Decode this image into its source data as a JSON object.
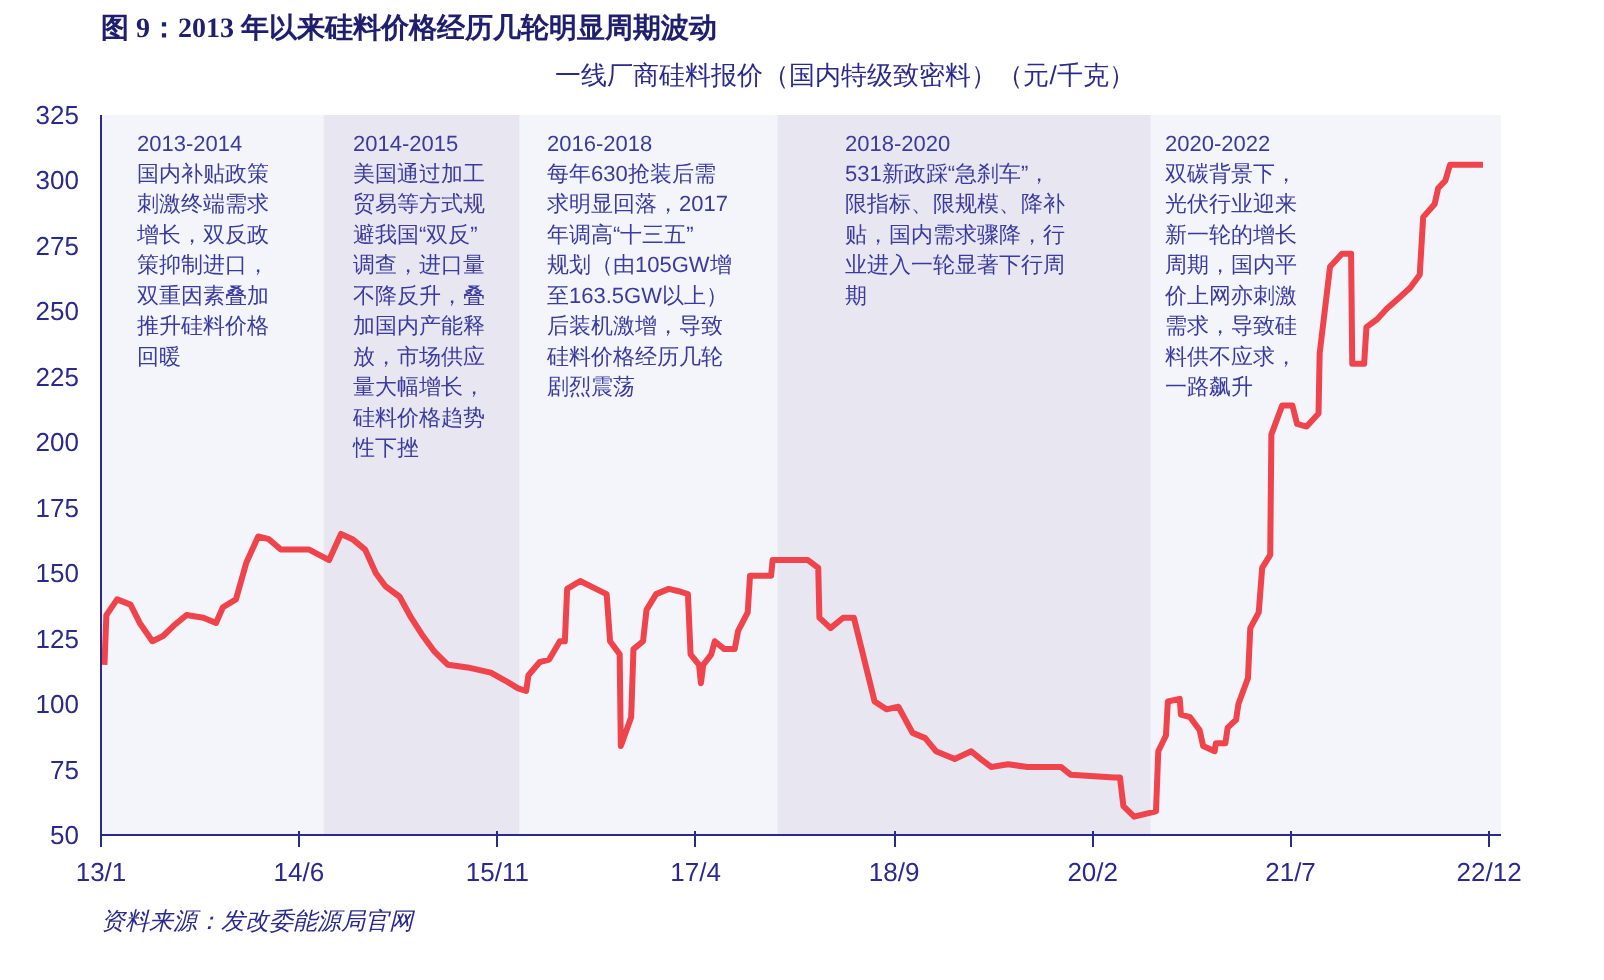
{
  "chart_data": {
    "type": "line",
    "title": "图 9：2013 年以来硅料价格经历几轮明显周期波动",
    "legend": "top",
    "x": [
      "2013-01-10",
      "2013-01-15",
      "2013-02-12",
      "2013-03-19",
      "2013-04-12",
      "2013-05-15",
      "2013-06-12",
      "2013-07-10",
      "2013-08-12",
      "2013-09-25",
      "2013-10-28",
      "2013-11-15",
      "2013-12-19",
      "2014-01-15",
      "2014-02-15",
      "2014-03-15",
      "2014-04-15",
      "2014-06-28",
      "2014-08-19",
      "2014-09-19",
      "2014-10-19",
      "2014-11-21",
      "2014-12-19",
      "2015-01-13",
      "2015-02-19",
      "2015-03-21",
      "2015-04-21",
      "2015-05-21",
      "2015-06-25",
      "2015-08-15",
      "2015-10-15",
      "2015-11-21",
      "2015-12-25",
      "2016-01-15",
      "2016-01-21",
      "2016-02-19",
      "2016-03-15",
      "2016-04-12",
      "2016-04-25",
      "2016-05-01",
      "2016-06-04",
      "2016-07-15",
      "2016-08-12",
      "2016-08-21",
      "2016-09-15",
      "2016-09-18",
      "2016-10-15",
      "2016-10-21",
      "2016-11-15",
      "2016-11-24",
      "2016-12-19",
      "2017-01-21",
      "2017-02-19",
      "2017-03-12",
      "2017-03-19",
      "2017-04-10",
      "2017-04-15",
      "2017-04-21",
      "2017-05-12",
      "2017-05-21",
      "2017-06-15",
      "2017-07-12",
      "2017-07-21",
      "2017-08-15",
      "2017-08-21",
      "2017-10-15",
      "2017-10-19",
      "2017-11-19",
      "2018-01-19",
      "2018-02-15",
      "2018-02-18",
      "2018-03-19",
      "2018-04-21",
      "2018-05-19",
      "2018-07-12",
      "2018-08-12",
      "2018-09-12",
      "2018-10-19",
      "2018-11-21",
      "2018-12-19",
      "2019-02-06",
      "2019-03-21",
      "2019-04-15",
      "2019-05-12",
      "2019-06-25",
      "2019-08-15",
      "2019-11-10",
      "2019-12-06",
      "2020-03-28",
      "2020-04-12",
      "2020-04-21",
      "2020-05-19",
      "2020-07-15",
      "2020-07-21",
      "2020-08-10",
      "2020-08-15",
      "2020-09-15",
      "2020-09-18",
      "2020-10-12",
      "2020-11-06",
      "2020-11-15",
      "2020-12-15",
      "2020-12-18",
      "2021-01-12",
      "2021-01-18",
      "2021-02-09",
      "2021-02-15",
      "2021-03-12",
      "2021-03-18",
      "2021-04-09",
      "2021-04-18",
      "2021-05-09",
      "2021-05-12",
      "2021-06-09",
      "2021-07-06",
      "2021-07-18",
      "2021-08-12",
      "2021-09-12",
      "2021-09-15",
      "2021-10-12",
      "2021-11-12",
      "2021-12-06",
      "2021-12-09",
      "2022-01-09",
      "2022-01-15",
      "2022-02-12",
      "2022-03-09",
      "2022-04-09",
      "2022-05-09",
      "2022-06-03",
      "2022-06-12",
      "2022-07-12",
      "2022-07-21",
      "2022-08-09",
      "2022-08-21",
      "2022-11-15"
    ],
    "series": [
      {
        "name": "一线厂商硅料报价（国内特级致密料）（元/千克）",
        "color": "#f0444c",
        "values": [
          115,
          134,
          140,
          138,
          131,
          124,
          126,
          130,
          134,
          133,
          131,
          137,
          140,
          154,
          164,
          163,
          159,
          159,
          155,
          165,
          163,
          159,
          150,
          145,
          141,
          133,
          126,
          120,
          115,
          114,
          112,
          109,
          106,
          105,
          111,
          116,
          117,
          124,
          124,
          144,
          147,
          144,
          142,
          124,
          119,
          84,
          95,
          121,
          124,
          136,
          142,
          144,
          143,
          142,
          119,
          115,
          108,
          115,
          119,
          124,
          121,
          121,
          128,
          135,
          149,
          149,
          155,
          155,
          155,
          152,
          133,
          129,
          133,
          133,
          101,
          98,
          99,
          89,
          87,
          82,
          79,
          82,
          79,
          76,
          77,
          76,
          76,
          73,
          72,
          72,
          61,
          57,
          59,
          82,
          88,
          101,
          102,
          96,
          95,
          90,
          84,
          82,
          85,
          85,
          91,
          94,
          100,
          110,
          129,
          135,
          152,
          157,
          203,
          214,
          214,
          207,
          206,
          211,
          234,
          267,
          272,
          272,
          230,
          230,
          244,
          247,
          251,
          255,
          259,
          264,
          286,
          291,
          297,
          300,
          306,
          306
        ]
      }
    ],
    "xlim": [
      "2013-01-01",
      "2023-01-01"
    ],
    "xticks": [
      {
        "value": "2013-01-01",
        "label": "13/1"
      },
      {
        "value": "2014-06-01",
        "label": "14/6"
      },
      {
        "value": "2015-11-01",
        "label": "15/11"
      },
      {
        "value": "2017-04-01",
        "label": "17/4"
      },
      {
        "value": "2018-09-01",
        "label": "18/9"
      },
      {
        "value": "2020-02-01",
        "label": "20/2"
      },
      {
        "value": "2021-07-01",
        "label": "21/7"
      },
      {
        "value": "2022-12-01",
        "label": "22/12"
      }
    ],
    "ylim": [
      50,
      325
    ],
    "yticks": [
      50,
      75,
      100,
      125,
      150,
      175,
      200,
      225,
      250,
      275,
      300,
      325
    ],
    "bands": [
      {
        "axis": "x",
        "from": "2014-08-05",
        "to": "2015-12-28",
        "color": "#e8e6f1"
      },
      {
        "axis": "x",
        "from": "2017-11-01",
        "to": "2020-07-01",
        "color": "#e8e6f1"
      }
    ],
    "annotations": [
      "2013-2014",
      "国内补贴政策刺激终端需求增长，双反政策抑制进口，双重因素叠加推升硅料价格回暖",
      "2014-2015",
      "美国通过加工贸易等方式规避我国“双反”调查，进口量不降反升，叠加国内产能释放，市场供应量大幅增长，硅料价格趋势性下挫",
      "2016-2018",
      "每年630抢装后需求明显回落，2017年调高“十三五”规划（由105GW增至163.5GW以上）后装机激增，导致硅料价格经历几轮剧烈震荡",
      "2018-2020",
      "531新政踩“急刹车”，限指标、限规模、降补贴，国内需求骤降，行业进入一轮显著下行周期",
      "2020-2022",
      "双碳背景下，光伏行业迎来新一轮的增长周期，国内平价上网亦刺激需求，导致硅料供不应求，一路飙升",
      "资料来源：发改委能源局官网"
    ]
  }
}
